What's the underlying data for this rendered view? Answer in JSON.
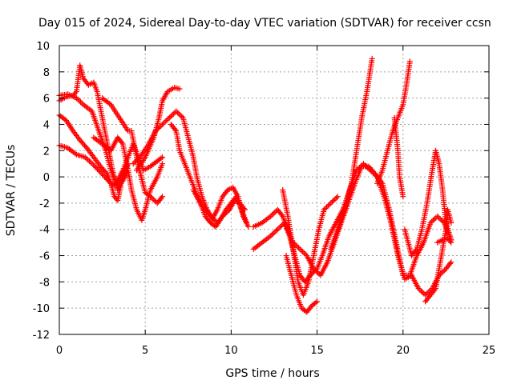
{
  "chart_data": {
    "type": "scatter",
    "title": "Day 015 of 2024, Sidereal Day-to-day VTEC variation (SDTVAR) for receiver ccsn",
    "xlabel": "GPS time / hours",
    "ylabel": "SDTVAR / TECUs",
    "xlim": [
      0,
      25
    ],
    "ylim": [
      -12,
      10
    ],
    "xticks": [
      0,
      5,
      10,
      15,
      20,
      25
    ],
    "yticks": [
      -12,
      -10,
      -8,
      -6,
      -4,
      -2,
      0,
      2,
      4,
      6,
      8,
      10
    ],
    "grid": true,
    "marker": "+",
    "series": [
      {
        "color": "#ff0000",
        "tracks": [
          [
            [
              0,
              6.2
            ],
            [
              0.5,
              6.3
            ],
            [
              1.0,
              6.0
            ],
            [
              1.4,
              5.5
            ],
            [
              1.9,
              5.0
            ],
            [
              2.3,
              3.5
            ],
            [
              2.7,
              2.0
            ],
            [
              3.0,
              0.5
            ],
            [
              3.3,
              -0.5
            ],
            [
              3.7,
              0.5
            ],
            [
              4.0,
              1.5
            ],
            [
              4.3,
              2.5
            ],
            [
              4.6,
              1.5
            ],
            [
              4.9,
              0.5
            ],
            [
              5.3,
              0.8
            ],
            [
              5.7,
              1.2
            ],
            [
              6.0,
              1.5
            ]
          ],
          [
            [
              0,
              5.8
            ],
            [
              0.4,
              6.1
            ],
            [
              0.8,
              6.2
            ],
            [
              1.0,
              6.5
            ],
            [
              1.2,
              8.5
            ],
            [
              1.4,
              7.5
            ],
            [
              1.7,
              7.0
            ],
            [
              2.0,
              7.2
            ],
            [
              2.2,
              6.5
            ],
            [
              2.5,
              4.5
            ],
            [
              2.8,
              2.5
            ],
            [
              3.1,
              0.5
            ],
            [
              3.4,
              -1.0
            ],
            [
              3.7,
              0.0
            ],
            [
              4.0,
              1.0
            ]
          ],
          [
            [
              0,
              4.7
            ],
            [
              0.4,
              4.3
            ],
            [
              0.8,
              3.5
            ],
            [
              1.2,
              2.8
            ],
            [
              1.6,
              2.2
            ],
            [
              2.0,
              1.5
            ],
            [
              2.4,
              0.8
            ],
            [
              2.8,
              0.2
            ],
            [
              3.0,
              -0.5
            ],
            [
              3.2,
              -1.5
            ],
            [
              3.4,
              -1.8
            ],
            [
              3.6,
              -0.5
            ],
            [
              3.8,
              0.5
            ],
            [
              4.0,
              1.0
            ]
          ],
          [
            [
              0,
              2.4
            ],
            [
              0.5,
              2.2
            ],
            [
              1.0,
              1.7
            ],
            [
              1.5,
              1.5
            ],
            [
              2.0,
              0.9
            ],
            [
              2.5,
              0.2
            ],
            [
              3.0,
              -0.5
            ],
            [
              3.3,
              -0.7
            ],
            [
              3.7,
              -0.3
            ],
            [
              4.0,
              0.5
            ]
          ],
          [
            [
              2.5,
              6.0
            ],
            [
              3.0,
              5.5
            ],
            [
              3.5,
              4.5
            ],
            [
              4.0,
              3.5
            ],
            [
              4.2,
              3.5
            ],
            [
              4.5,
              1.5
            ],
            [
              4.8,
              -0.2
            ],
            [
              5.0,
              -1.2
            ],
            [
              5.3,
              -1.5
            ],
            [
              5.7,
              -2.0
            ],
            [
              6.0,
              -1.5
            ]
          ],
          [
            [
              2.0,
              3.0
            ],
            [
              2.5,
              2.5
            ],
            [
              3.0,
              2.0
            ],
            [
              3.4,
              3.0
            ],
            [
              3.7,
              2.5
            ],
            [
              4.0,
              0.5
            ],
            [
              4.2,
              -1.0
            ],
            [
              4.5,
              -2.5
            ],
            [
              4.8,
              -3.3
            ],
            [
              5.0,
              -2.5
            ],
            [
              5.3,
              -1.0
            ],
            [
              5.7,
              0.0
            ],
            [
              6.0,
              1.0
            ]
          ],
          [
            [
              4.5,
              0.5
            ],
            [
              5.0,
              1.5
            ],
            [
              5.5,
              3.0
            ],
            [
              5.8,
              4.5
            ],
            [
              6.0,
              5.8
            ],
            [
              6.3,
              6.5
            ],
            [
              6.7,
              6.8
            ],
            [
              7.0,
              6.7
            ]
          ],
          [
            [
              4.3,
              1.0
            ],
            [
              4.7,
              1.5
            ],
            [
              5.2,
              2.5
            ],
            [
              5.6,
              3.5
            ],
            [
              6.0,
              4.0
            ],
            [
              6.4,
              4.5
            ],
            [
              6.8,
              5.0
            ],
            [
              7.2,
              4.5
            ],
            [
              7.5,
              3.0
            ],
            [
              7.8,
              1.5
            ],
            [
              8.0,
              0.0
            ],
            [
              8.3,
              -1.5
            ],
            [
              8.6,
              -2.5
            ],
            [
              8.9,
              -3.2
            ],
            [
              9.2,
              -2.5
            ],
            [
              9.5,
              -1.5
            ],
            [
              9.8,
              -1.0
            ],
            [
              10.1,
              -0.8
            ],
            [
              10.4,
              -1.5
            ],
            [
              10.7,
              -3.0
            ],
            [
              11.0,
              -3.8
            ]
          ],
          [
            [
              6.5,
              4.0
            ],
            [
              6.8,
              3.5
            ],
            [
              7.0,
              2.0
            ],
            [
              7.3,
              1.0
            ],
            [
              7.6,
              0.0
            ],
            [
              7.9,
              -1.0
            ],
            [
              8.2,
              -2.0
            ],
            [
              8.5,
              -3.0
            ],
            [
              8.8,
              -3.5
            ],
            [
              9.1,
              -3.8
            ],
            [
              9.4,
              -3.2
            ],
            [
              9.7,
              -2.5
            ],
            [
              10.0,
              -2.0
            ],
            [
              10.3,
              -1.5
            ],
            [
              10.6,
              -2.5
            ],
            [
              10.9,
              -3.5
            ]
          ],
          [
            [
              7.8,
              -1.0
            ],
            [
              8.2,
              -2.0
            ],
            [
              8.5,
              -2.5
            ],
            [
              8.8,
              -3.0
            ],
            [
              9.2,
              -3.5
            ],
            [
              9.5,
              -3.0
            ],
            [
              9.9,
              -2.5
            ],
            [
              10.2,
              -1.8
            ],
            [
              10.5,
              -2.0
            ],
            [
              10.8,
              -2.5
            ]
          ],
          [
            [
              11.3,
              -3.8
            ],
            [
              11.8,
              -3.5
            ],
            [
              12.3,
              -3.0
            ],
            [
              12.7,
              -2.5
            ],
            [
              13.0,
              -3.0
            ],
            [
              13.3,
              -4.0
            ],
            [
              13.6,
              -5.0
            ],
            [
              14.0,
              -5.5
            ],
            [
              14.4,
              -6.0
            ],
            [
              14.8,
              -7.0
            ],
            [
              15.2,
              -7.5
            ],
            [
              15.6,
              -6.5
            ],
            [
              16.0,
              -5.0
            ],
            [
              16.4,
              -3.5
            ],
            [
              16.8,
              -2.0
            ],
            [
              17.2,
              -0.5
            ],
            [
              17.6,
              0.8
            ],
            [
              18.0,
              0.8
            ],
            [
              18.4,
              0.2
            ],
            [
              18.8,
              -0.5
            ],
            [
              19.2,
              -2.5
            ],
            [
              19.6,
              -5.0
            ],
            [
              20.0,
              -7.5
            ],
            [
              20.4,
              -7.5
            ],
            [
              20.8,
              -6.0
            ],
            [
              21.2,
              -5.0
            ],
            [
              21.6,
              -3.5
            ],
            [
              22.0,
              -3.0
            ],
            [
              22.4,
              -3.5
            ],
            [
              22.8,
              -4.8
            ]
          ],
          [
            [
              11.3,
              -5.5
            ],
            [
              11.8,
              -5.0
            ],
            [
              12.3,
              -4.5
            ],
            [
              12.7,
              -4.0
            ],
            [
              13.1,
              -3.5
            ],
            [
              13.4,
              -4.5
            ],
            [
              13.7,
              -6.0
            ],
            [
              14.0,
              -7.5
            ],
            [
              14.3,
              -8.0
            ],
            [
              14.6,
              -7.5
            ],
            [
              15.0,
              -7.0
            ],
            [
              15.3,
              -6.0
            ],
            [
              15.7,
              -4.5
            ],
            [
              16.1,
              -3.5
            ],
            [
              16.5,
              -2.5
            ],
            [
              16.9,
              -1.0
            ],
            [
              17.3,
              0.5
            ],
            [
              17.7,
              1.0
            ],
            [
              18.1,
              0.5
            ],
            [
              18.5,
              0.0
            ],
            [
              18.9,
              -1.5
            ],
            [
              19.3,
              -3.5
            ],
            [
              19.7,
              -6.0
            ],
            [
              20.1,
              -7.8
            ],
            [
              20.5,
              -7.5
            ],
            [
              20.9,
              -8.5
            ],
            [
              21.3,
              -9.0
            ],
            [
              21.7,
              -8.5
            ],
            [
              22.1,
              -7.5
            ],
            [
              22.5,
              -7.0
            ],
            [
              22.8,
              -6.5
            ]
          ],
          [
            [
              13.0,
              -1.0
            ],
            [
              13.3,
              -3.0
            ],
            [
              13.6,
              -5.5
            ],
            [
              13.9,
              -8.0
            ],
            [
              14.2,
              -9.0
            ],
            [
              14.5,
              -8.0
            ],
            [
              14.8,
              -6.0
            ],
            [
              15.1,
              -4.0
            ],
            [
              15.4,
              -2.5
            ],
            [
              15.8,
              -2.0
            ],
            [
              16.2,
              -1.5
            ]
          ],
          [
            [
              13.2,
              -6.0
            ],
            [
              13.5,
              -7.5
            ],
            [
              13.8,
              -9.0
            ],
            [
              14.1,
              -10.0
            ],
            [
              14.4,
              -10.3
            ],
            [
              14.7,
              -9.8
            ],
            [
              15.0,
              -9.5
            ]
          ],
          [
            [
              15.8,
              -5.5
            ],
            [
              16.2,
              -4.0
            ],
            [
              16.6,
              -2.5
            ],
            [
              17.0,
              -0.5
            ],
            [
              17.3,
              2.0
            ],
            [
              17.6,
              4.5
            ],
            [
              17.9,
              6.5
            ],
            [
              18.2,
              9.0
            ]
          ],
          [
            [
              18.5,
              -0.5
            ],
            [
              18.8,
              0.5
            ],
            [
              19.1,
              2.0
            ],
            [
              19.4,
              3.5
            ],
            [
              19.7,
              4.5
            ],
            [
              20.0,
              5.5
            ],
            [
              20.2,
              7.0
            ],
            [
              20.4,
              8.8
            ]
          ],
          [
            [
              19.5,
              4.5
            ],
            [
              19.7,
              2.0
            ],
            [
              19.8,
              0.0
            ],
            [
              20.0,
              -1.5
            ]
          ],
          [
            [
              20.1,
              -4.0
            ],
            [
              20.3,
              -5.0
            ],
            [
              20.5,
              -6.0
            ],
            [
              20.8,
              -5.5
            ],
            [
              21.1,
              -4.0
            ],
            [
              21.4,
              -2.0
            ],
            [
              21.7,
              0.5
            ],
            [
              21.9,
              2.0
            ],
            [
              22.1,
              1.0
            ],
            [
              22.3,
              -1.0
            ],
            [
              22.5,
              -3.5
            ],
            [
              22.8,
              -4.8
            ]
          ],
          [
            [
              21.3,
              -9.5
            ],
            [
              21.6,
              -9.0
            ],
            [
              21.9,
              -8.5
            ],
            [
              22.1,
              -7.0
            ],
            [
              22.3,
              -5.5
            ],
            [
              22.5,
              -4.0
            ],
            [
              22.6,
              -2.5
            ],
            [
              22.8,
              -3.5
            ]
          ],
          [
            [
              22.0,
              -5.0
            ],
            [
              22.3,
              -4.8
            ],
            [
              22.6,
              -4.7
            ],
            [
              22.8,
              -5.0
            ]
          ]
        ]
      }
    ]
  }
}
